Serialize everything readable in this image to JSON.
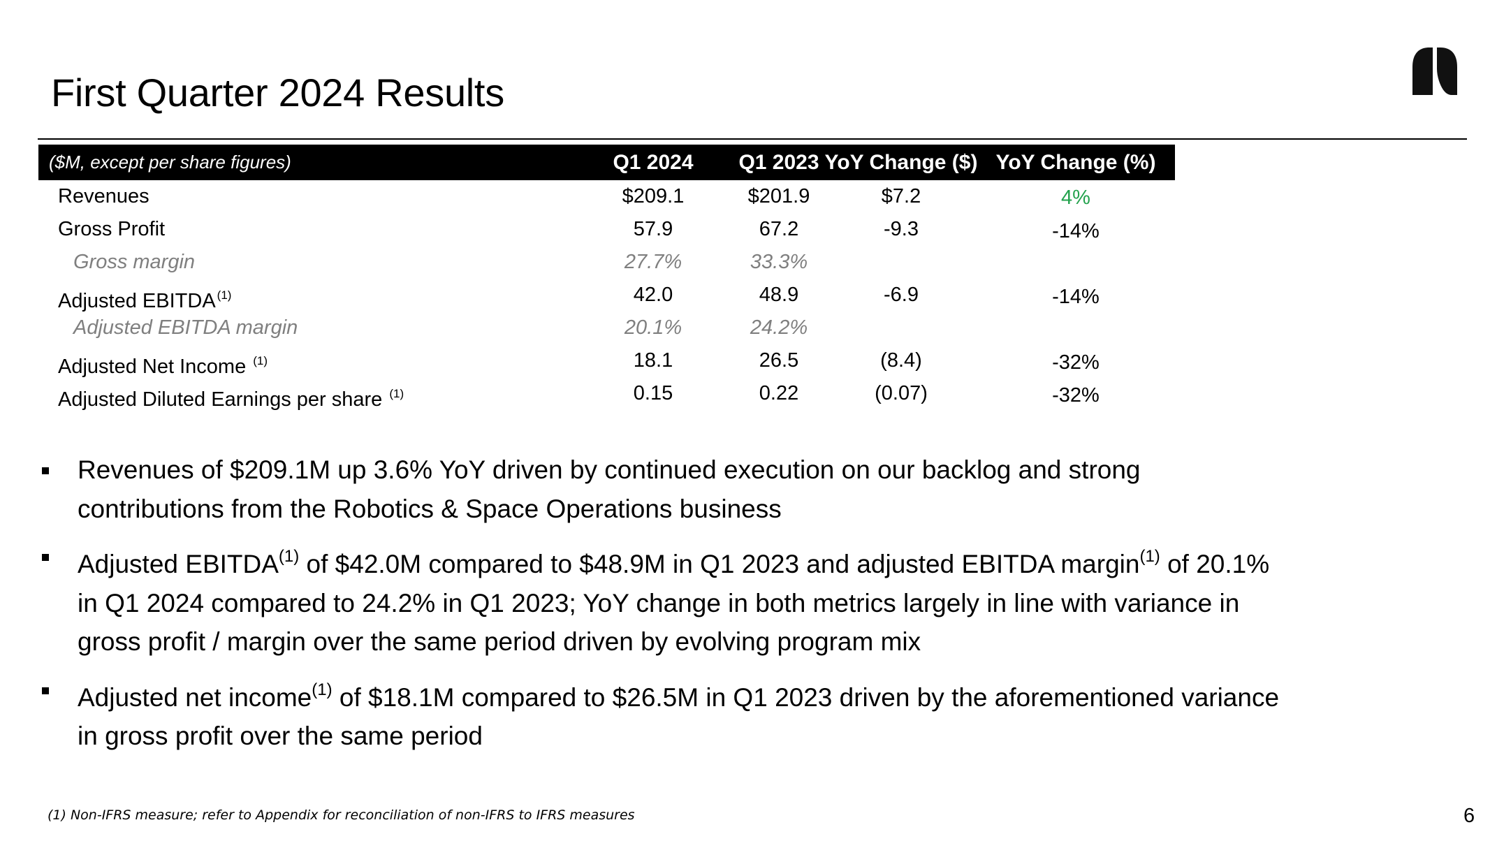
{
  "slide": {
    "title": "First Quarter 2024 Results",
    "page_number": "6",
    "footnote": "(1) Non-IFRS measure; refer to Appendix for reconciliation of non-IFRS to IFRS measures"
  },
  "table": {
    "header": {
      "label": "($M, except per share figures)",
      "col1": "Q1 2024",
      "col2": "Q1 2023",
      "col3": "YoY Change ($)",
      "col4": "YoY Change (%)"
    },
    "rows": [
      {
        "label": "Revenues",
        "fn": "",
        "q1_2024": "$209.1",
        "q1_2023": "$201.9",
        "yoy_dollar": "$7.2",
        "yoy_pct": "4%"
      },
      {
        "label": "Gross Profit",
        "fn": "",
        "q1_2024": "57.9",
        "q1_2023": "67.2",
        "yoy_dollar": "-9.3",
        "yoy_pct": "-14%"
      },
      {
        "label": "Gross margin",
        "fn": "",
        "q1_2024": "27.7%",
        "q1_2023": "33.3%",
        "yoy_dollar": "",
        "yoy_pct": ""
      },
      {
        "label": "Adjusted EBITDA",
        "fn": "(1)",
        "q1_2024": "42.0",
        "q1_2023": "48.9",
        "yoy_dollar": "-6.9",
        "yoy_pct": "-14%"
      },
      {
        "label": "Adjusted EBITDA margin",
        "fn": "",
        "q1_2024": "20.1%",
        "q1_2023": "24.2%",
        "yoy_dollar": "",
        "yoy_pct": ""
      },
      {
        "label": "Adjusted Net Income",
        "fn": "(1)",
        "q1_2024": "18.1",
        "q1_2023": "26.5",
        "yoy_dollar": "(8.4)",
        "yoy_pct": "-32%"
      },
      {
        "label": "Adjusted Diluted Earnings per share",
        "fn": "(1)",
        "q1_2024": "0.15",
        "q1_2023": "0.22",
        "yoy_dollar": "(0.07)",
        "yoy_pct": "-32%"
      }
    ]
  },
  "bullets": [
    {
      "parts": [
        "Revenues of $209.1M up 3.6% YoY driven by continued execution on our backlog and strong contributions from the Robotics & Space Operations business"
      ]
    },
    {
      "parts": [
        "Adjusted EBITDA",
        "(1)",
        " of $42.0M compared to $48.9M in Q1 2023 and adjusted EBITDA margin",
        "(1)",
        " of 20.1% in Q1 2024 compared to 24.2% in Q1 2023; YoY change in both metrics largely in line with variance in gross profit / margin over the same period driven by evolving program mix"
      ]
    },
    {
      "parts": [
        "Adjusted net income",
        "(1)",
        " of $18.1M compared to $26.5M in Q1 2023 driven by the aforementioned variance in gross profit over the same period"
      ]
    }
  ],
  "colors": {
    "positive": "#23a24d",
    "muted": "#7f7f7f",
    "header_bg": "#000000"
  }
}
